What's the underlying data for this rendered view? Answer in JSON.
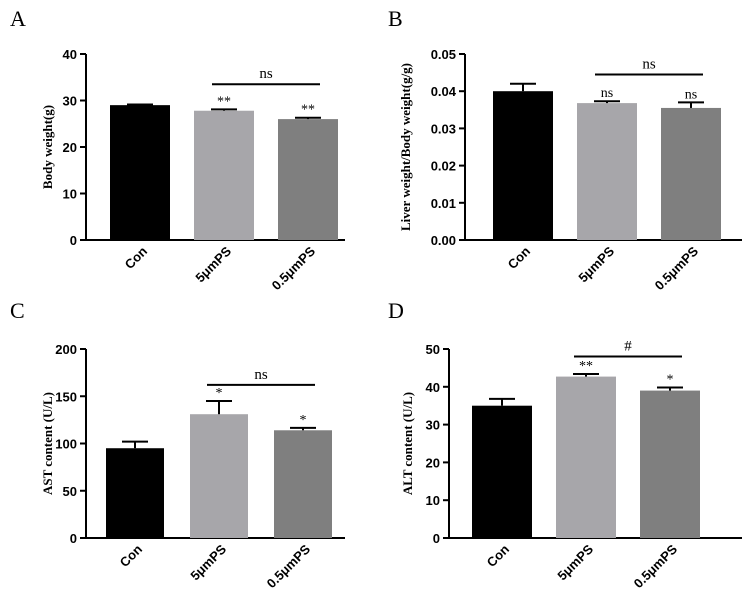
{
  "chart_data": [
    {
      "panel": "A",
      "type": "bar",
      "ylabel": "Body weight(g)",
      "categories": [
        "Con",
        "5μmPS",
        "0.5μmPS"
      ],
      "values": [
        29.0,
        27.8,
        26.0
      ],
      "errors": [
        0.15,
        0.3,
        0.3
      ],
      "colors": [
        "#000000",
        "#a7a6aa",
        "#7f7f7f"
      ],
      "ylim": [
        0,
        40
      ],
      "yticks": [
        "0",
        "10",
        "20",
        "30",
        "40"
      ],
      "bar_marks": [
        "",
        "**",
        "**"
      ],
      "bracket": {
        "from": 1,
        "to": 2,
        "label": "ns",
        "y": 33.5
      }
    },
    {
      "panel": "B",
      "type": "bar",
      "ylabel": "Liver weight/Body weight(g/g)",
      "categories": [
        "Con",
        "5μmPS",
        "0.5μmPS"
      ],
      "values": [
        0.04,
        0.0368,
        0.0355
      ],
      "errors": [
        0.002,
        0.0005,
        0.0015
      ],
      "colors": [
        "#000000",
        "#a7a6aa",
        "#7f7f7f"
      ],
      "ylim": [
        0,
        0.05
      ],
      "yticks": [
        "0.00",
        "0.01",
        "0.02",
        "0.03",
        "0.04",
        "0.05"
      ],
      "bar_marks": [
        "",
        "ns",
        "ns"
      ],
      "bracket": {
        "from": 1,
        "to": 2,
        "label": "ns",
        "y": 0.0445
      }
    },
    {
      "panel": "C",
      "type": "bar",
      "ylabel": "AST content (U/L)",
      "categories": [
        "Con",
        "5μmPS",
        "0.5μmPS"
      ],
      "values": [
        95,
        131,
        114
      ],
      "errors": [
        7,
        14,
        2.5
      ],
      "colors": [
        "#000000",
        "#a7a6aa",
        "#7f7f7f"
      ],
      "ylim": [
        0,
        200
      ],
      "yticks": [
        "0",
        "50",
        "100",
        "150",
        "200"
      ],
      "bar_marks": [
        "",
        "*",
        "*"
      ],
      "bracket": {
        "from": 1,
        "to": 2,
        "label": "ns",
        "y": 162
      }
    },
    {
      "panel": "D",
      "type": "bar",
      "ylabel": "ALT content (U/L)",
      "categories": [
        "Con",
        "5μmPS",
        "0.5μmPS"
      ],
      "values": [
        35,
        42.7,
        39
      ],
      "errors": [
        1.8,
        0.7,
        0.8
      ],
      "colors": [
        "#000000",
        "#a7a6aa",
        "#7f7f7f"
      ],
      "ylim": [
        0,
        50
      ],
      "yticks": [
        "0",
        "10",
        "20",
        "30",
        "40",
        "50"
      ],
      "bar_marks": [
        "",
        "**",
        "*"
      ],
      "bracket": {
        "from": 1,
        "to": 2,
        "label": "#",
        "y": 48
      }
    }
  ]
}
